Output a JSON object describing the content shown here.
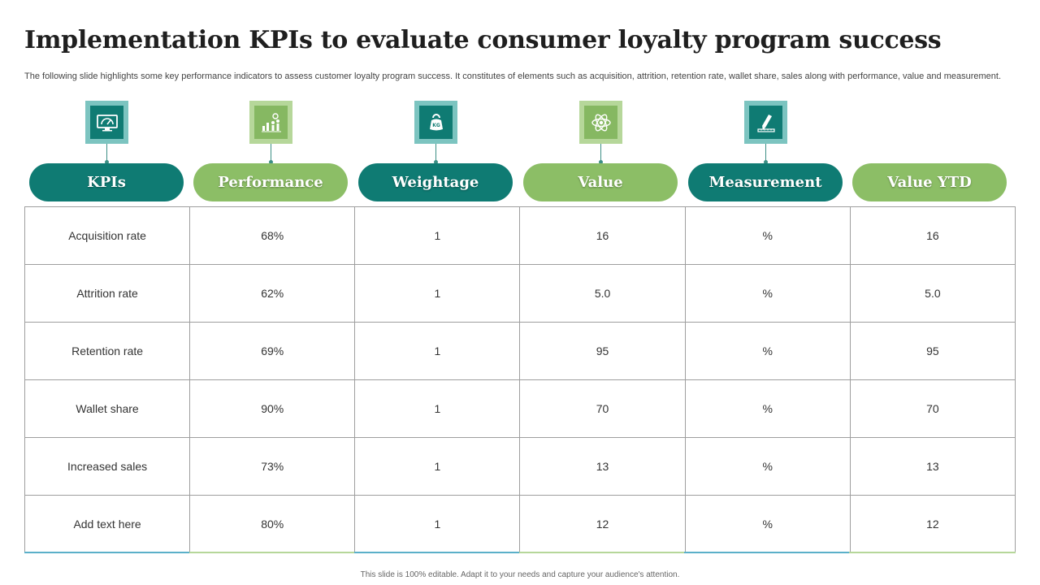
{
  "title": "Implementation KPIs to evaluate consumer loyalty program success",
  "subtitle": "The following slide highlights some key performance indicators to assess customer loyalty program success. It constitutes of elements such as acquisition, attrition, retention rate, wallet share, sales along with performance, value and measurement.",
  "columns": [
    {
      "label": "KPIs",
      "icon": "monitor-dashboard-icon",
      "theme": "teal"
    },
    {
      "label": "Performance",
      "icon": "bar-chart-people-icon",
      "theme": "green"
    },
    {
      "label": "Weightage",
      "icon": "kettlebell-kg-icon",
      "theme": "teal"
    },
    {
      "label": "Value",
      "icon": "atom-icon",
      "theme": "green"
    },
    {
      "label": "Measurement",
      "icon": "ruler-pencil-icon",
      "theme": "teal"
    },
    {
      "label": "Value YTD",
      "icon": "",
      "theme": "green"
    }
  ],
  "rows": [
    [
      "Acquisition rate",
      "68%",
      "1",
      "16",
      "%",
      "16"
    ],
    [
      "Attrition rate",
      "62%",
      "1",
      "5.0",
      "%",
      "5.0"
    ],
    [
      "Retention rate",
      "69%",
      "1",
      "95",
      "%",
      "95"
    ],
    [
      "Wallet share",
      "90%",
      "1",
      "70",
      "%",
      "70"
    ],
    [
      "Increased sales",
      "73%",
      "1",
      "13",
      "%",
      "13"
    ],
    [
      "Add text here",
      "80%",
      "1",
      "12",
      "%",
      "12"
    ]
  ],
  "colors": {
    "teal": "#0f7b73",
    "green": "#8cbe66"
  },
  "footer": "This slide is 100% editable. Adapt it to your needs and capture your audience's attention."
}
